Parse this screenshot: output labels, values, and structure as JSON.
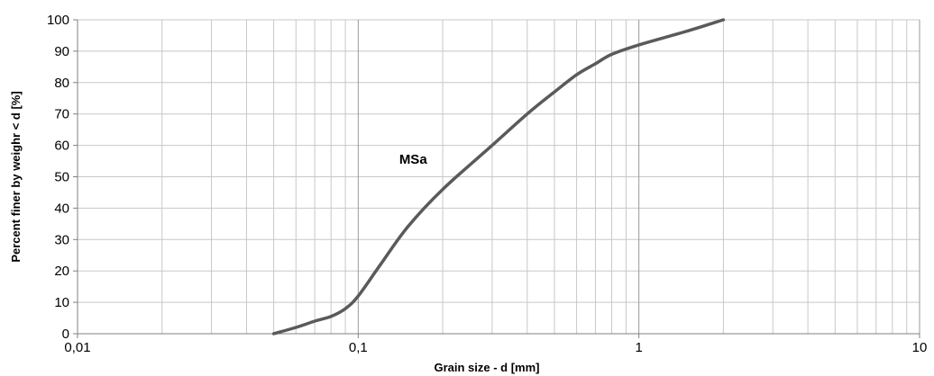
{
  "chart_data": {
    "type": "line",
    "xscale": "log",
    "xlim": [
      0.01,
      10
    ],
    "ylim": [
      0,
      100
    ],
    "xlabel": "Grain size - d [mm]",
    "ylabel": "Percent finer by weighr < d [%]",
    "grid": true,
    "legend": "none",
    "x_tick_labels": [
      "0,01",
      "0,1",
      "1",
      "10"
    ],
    "y_tick_labels": [
      "0",
      "10",
      "20",
      "30",
      "40",
      "50",
      "60",
      "70",
      "80",
      "90",
      "100"
    ],
    "annotation": "MSa",
    "series": [
      {
        "name": "MSa",
        "color": "#5a5a5a",
        "x": [
          0.05,
          0.06,
          0.07,
          0.08,
          0.09,
          0.1,
          0.12,
          0.15,
          0.2,
          0.3,
          0.4,
          0.5,
          0.6,
          0.7,
          0.8,
          1.0,
          1.5,
          2.0
        ],
        "y": [
          0,
          2,
          4,
          5.5,
          8,
          12,
          22,
          34,
          46,
          60,
          70,
          77,
          82.5,
          86,
          89,
          92,
          96.5,
          100
        ]
      }
    ]
  }
}
